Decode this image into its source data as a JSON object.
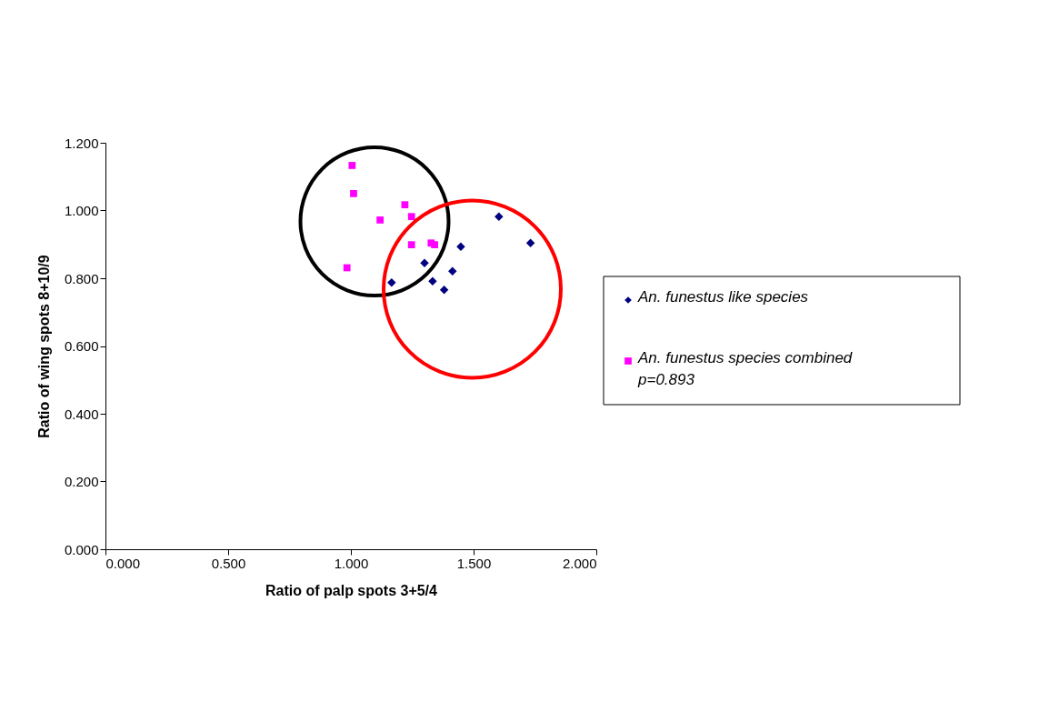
{
  "chart_data": {
    "type": "scatter",
    "xlabel": "Ratio of palp spots 3+5/4",
    "ylabel": "Ratio of wing spots 8+10/9",
    "series": [
      {
        "name": "An. funestus like species",
        "color": "#000080",
        "marker": "diamond",
        "x": [
          1.603,
          1.732,
          1.448,
          1.3,
          1.414,
          1.166,
          1.333,
          1.38
        ],
        "values": [
          0.982,
          0.904,
          0.893,
          0.845,
          0.821,
          0.787,
          0.791,
          0.766
        ]
      },
      {
        "name": "An. funestus species combined p=0.893",
        "color": "#ff00ff",
        "marker": "square",
        "x": [
          1.005,
          1.011,
          1.22,
          1.247,
          1.119,
          1.247,
          1.327,
          1.341,
          0.984
        ],
        "values": [
          1.133,
          1.05,
          1.017,
          0.982,
          0.972,
          0.899,
          0.904,
          0.899,
          0.831
        ]
      }
    ],
    "xlim": [
      0,
      2
    ],
    "ylim": [
      0,
      1.2
    ],
    "xticks": [
      {
        "value": 0,
        "label": "0.000"
      },
      {
        "value": 0.5,
        "label": "0.500"
      },
      {
        "value": 1,
        "label": "1.000"
      },
      {
        "value": 1.5,
        "label": "1.500"
      },
      {
        "value": 2,
        "label": "2.000"
      }
    ],
    "yticks": [
      {
        "value": 0,
        "label": "0.000"
      },
      {
        "value": 0.2,
        "label": "0.200"
      },
      {
        "value": 0.4,
        "label": "0.400"
      },
      {
        "value": 0.6,
        "label": "0.600"
      },
      {
        "value": 0.8,
        "label": "0.800"
      },
      {
        "value": 1,
        "label": "1.000"
      },
      {
        "value": 1.2,
        "label": "1.200"
      }
    ],
    "grid": false,
    "legend": "right"
  }
}
